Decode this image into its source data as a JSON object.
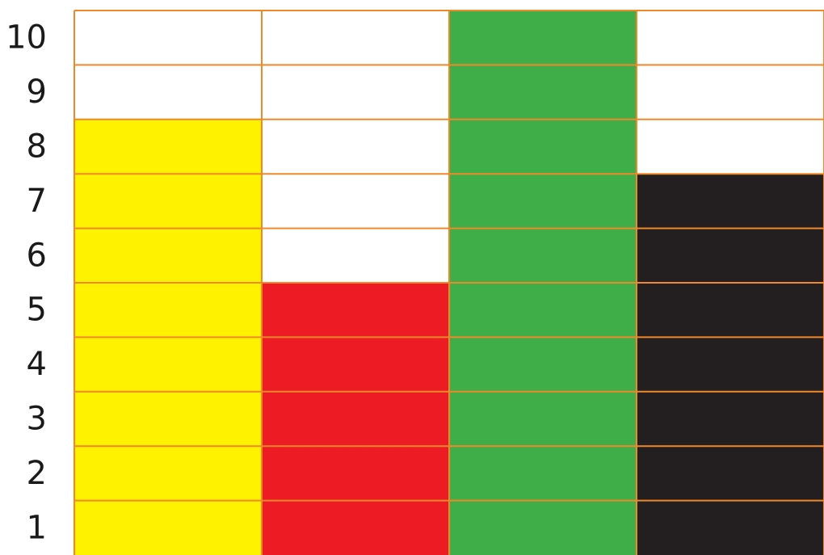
{
  "chart_data": {
    "type": "bar",
    "categories": [
      "",
      "",
      "",
      ""
    ],
    "values": [
      8,
      5,
      10,
      7
    ],
    "bar_colors": [
      "#fff200",
      "#ed1c24",
      "#3fae49",
      "#231f20"
    ],
    "grid_color": "#f0882a",
    "ylim": [
      0,
      10
    ],
    "yticks": [
      "1",
      "2",
      "3",
      "4",
      "5",
      "6",
      "7",
      "8",
      "9",
      "10"
    ],
    "title": "",
    "xlabel": "",
    "ylabel": "",
    "grid": true,
    "legend": "none"
  }
}
